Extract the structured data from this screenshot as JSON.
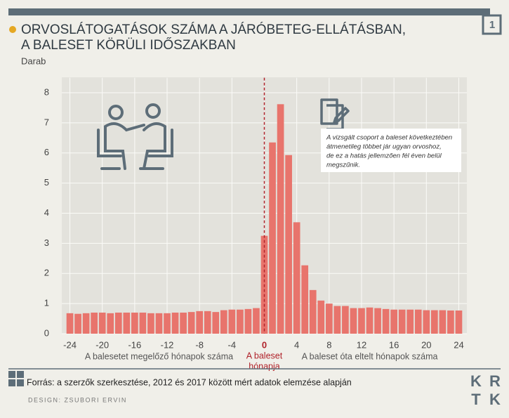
{
  "page_number": "1",
  "chart_data": {
    "type": "bar",
    "title": [
      "ORVOSLÁTOGATÁSOK SZÁMA A JÁRÓBETEG-ELLÁTÁSBAN,",
      "A BALESET KÖRÜLI IDŐSZAKBAN"
    ],
    "subtitle": "Darab",
    "x": [
      -24,
      -23,
      -22,
      -21,
      -20,
      -19,
      -18,
      -17,
      -16,
      -15,
      -14,
      -13,
      -12,
      -11,
      -10,
      -9,
      -8,
      -7,
      -6,
      -5,
      -4,
      -3,
      -2,
      -1,
      0,
      1,
      2,
      3,
      4,
      5,
      6,
      7,
      8,
      9,
      10,
      11,
      12,
      13,
      14,
      15,
      16,
      17,
      18,
      19,
      20,
      21,
      22,
      23,
      24
    ],
    "values": [
      0.68,
      0.66,
      0.68,
      0.7,
      0.7,
      0.68,
      0.7,
      0.7,
      0.7,
      0.7,
      0.68,
      0.68,
      0.68,
      0.7,
      0.7,
      0.72,
      0.75,
      0.75,
      0.72,
      0.78,
      0.8,
      0.8,
      0.82,
      0.85,
      3.25,
      6.35,
      7.62,
      5.93,
      3.7,
      2.27,
      1.45,
      1.1,
      1.0,
      0.92,
      0.92,
      0.85,
      0.85,
      0.87,
      0.85,
      0.82,
      0.8,
      0.8,
      0.8,
      0.8,
      0.78,
      0.78,
      0.78,
      0.77,
      0.77
    ],
    "color": "#e8746c",
    "xlim": [
      -25,
      25
    ],
    "xticks": [
      -24,
      -20,
      -16,
      -12,
      -8,
      -4,
      0,
      4,
      8,
      12,
      16,
      20,
      24
    ],
    "ylim": [
      0,
      8.5
    ],
    "yticks": [
      0,
      1,
      2,
      3,
      4,
      5,
      6,
      7,
      8
    ],
    "grid": true,
    "x_group_labels": [
      "A balesetet megelőző hónapok száma",
      "A baleset óta eltelt hónapok száma"
    ],
    "event_label": [
      "A baleset",
      "hónapja"
    ],
    "annotation": [
      "A vizsgált csoport a baleset következtében",
      "átmenetileg többet jár ugyan orvoshoz,",
      "de ez a hatás jellemzően fél éven belül",
      "megszűnik."
    ],
    "source": "Forrás: a szerzők szerkesztése, 2012 és 2017 között mért adatok elemzése alapján"
  },
  "credit": "DESIGN: ZSUBORI ERVIN",
  "logo": [
    "K",
    "R",
    "T",
    "K"
  ]
}
